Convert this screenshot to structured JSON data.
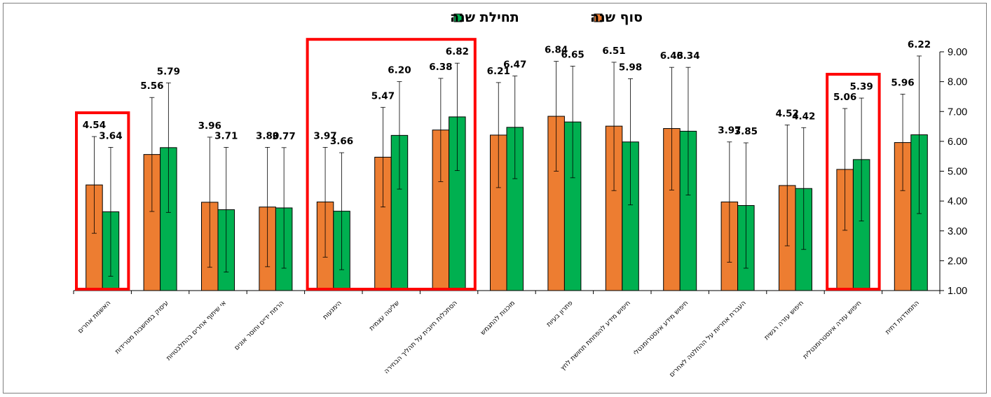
{
  "chart_data": {
    "type": "bar",
    "title": "",
    "xlabel": "",
    "ylabel": "",
    "ylim": [
      1,
      9
    ],
    "yticks": [
      "1.00",
      "2.00",
      "3.00",
      "4.00",
      "5.00",
      "6.00",
      "7.00",
      "8.00",
      "9.00"
    ],
    "y_axis_side": "right",
    "grid": false,
    "legend_position": "top-center",
    "error_bars": true,
    "categories": [
      "התמודדות דתית",
      "חיפוש עזרה אינסטרומנטלית",
      "חיפוש עזרה רגשית",
      "העברת אחריות על ההחלטה לאחרים",
      "חיפוש מידע אינסטרומנטלי",
      "חיפוש מידע להפחתת תחושת לחץ",
      "פתרון בעיות",
      "מוכנות להתגמש",
      "הסתכלות חיובית על תהליך הבחירה",
      "שליטה עצמית",
      "הימנעות",
      "הרמת ידיים וחוסר אונים",
      "אי שיתוף אחרים בהתלבטויות",
      "עיסוק במחשבות מטרידות",
      "האשמת אחרים"
    ],
    "series": [
      {
        "name": "סוף שנה",
        "color": "#ed7d31",
        "values": [
          5.96,
          5.06,
          4.52,
          3.97,
          6.43,
          6.51,
          6.84,
          6.21,
          6.38,
          5.47,
          3.97,
          3.8,
          3.96,
          5.56,
          4.54
        ],
        "error_low": [
          4.35,
          3.02,
          2.5,
          1.95,
          4.37,
          4.35,
          5.0,
          4.45,
          4.65,
          3.8,
          2.12,
          1.8,
          1.78,
          3.65,
          2.92
        ],
        "error_high": [
          7.58,
          7.1,
          6.55,
          5.98,
          8.48,
          8.65,
          8.68,
          7.97,
          8.11,
          7.14,
          5.8,
          5.8,
          6.14,
          7.47,
          6.16
        ]
      },
      {
        "name": "תחילת שנה",
        "color": "#00b050",
        "values": [
          6.22,
          5.39,
          4.42,
          3.85,
          6.34,
          5.98,
          6.65,
          6.47,
          6.82,
          6.2,
          3.66,
          3.77,
          3.71,
          5.79,
          3.64
        ],
        "error_low": [
          3.58,
          3.33,
          2.38,
          1.75,
          4.2,
          3.87,
          4.78,
          4.75,
          5.02,
          4.4,
          1.7,
          1.75,
          1.62,
          3.62,
          1.48
        ],
        "error_high": [
          8.86,
          7.45,
          6.46,
          5.95,
          8.48,
          8.1,
          8.52,
          8.19,
          8.62,
          8.0,
          5.62,
          5.79,
          5.8,
          7.96,
          5.8
        ]
      }
    ],
    "highlight_boxes": [
      {
        "categories": [
          1
        ],
        "color": "#ff0000"
      },
      {
        "categories": [
          8,
          9,
          10
        ],
        "color": "#ff0000"
      },
      {
        "categories": [
          14
        ],
        "color": "#ff0000"
      }
    ]
  }
}
